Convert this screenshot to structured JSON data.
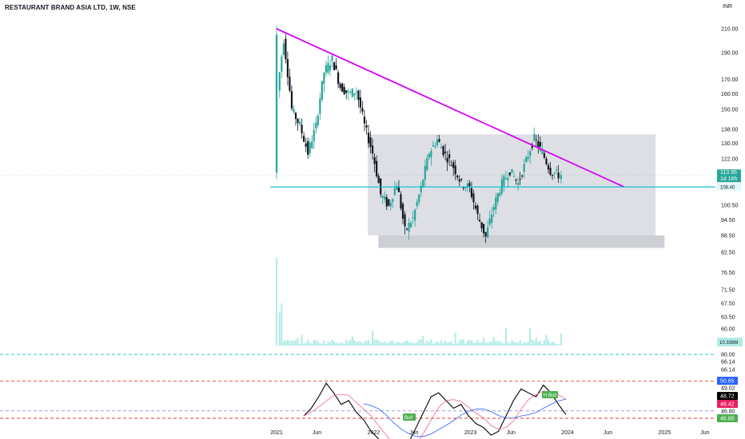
{
  "header": {
    "title": "RESTAURANT BRAND ASIA LTD, 1W, NSE",
    "currency": "INR"
  },
  "colors": {
    "up": "#26a69a",
    "down": "#131722",
    "trendline": "#d500f9",
    "support": "#00bcd4",
    "zone": "#d1d4dc",
    "volume": "#b2ebe6",
    "rsi": "#000000",
    "rsi_ma": "#f06292",
    "rsi_ma2": "#2962ff",
    "rsi_ma3": "#4caf50"
  },
  "chart_data": [
    {
      "type": "candlestick",
      "title": "RESTAURANT BRAND ASIA LTD, 1W, NSE",
      "y_scale": "log",
      "y_tick_labels": [
        "210.00",
        "190.00",
        "170.00",
        "160.00",
        "150.00",
        "138.00",
        "130.00",
        "122.00",
        "113.95",
        "108.40",
        "100.50",
        "94.50",
        "88.50",
        "82.50",
        "76.50",
        "71.50",
        "67.50",
        "63.50",
        "60.00"
      ],
      "x_tick_labels": [
        "2021",
        "Jun",
        "2022",
        "Jun",
        "2023",
        "Jun",
        "2024",
        "Jun",
        "2025",
        "Jun"
      ],
      "close_path": [
        [
          "2021-01",
          150
        ],
        [
          "2021-02",
          200
        ],
        [
          "2021-03",
          150
        ],
        [
          "2021-04",
          140
        ],
        [
          "2021-05",
          125
        ],
        [
          "2021-06",
          140
        ],
        [
          "2021-07",
          175
        ],
        [
          "2021-08",
          185
        ],
        [
          "2021-09",
          165
        ],
        [
          "2021-10",
          160
        ],
        [
          "2021-11",
          162
        ],
        [
          "2021-12",
          140
        ],
        [
          "2022-01",
          125
        ],
        [
          "2022-02",
          105
        ],
        [
          "2022-03",
          100
        ],
        [
          "2022-04",
          110
        ],
        [
          "2022-05",
          90
        ],
        [
          "2022-06",
          95
        ],
        [
          "2022-07",
          108
        ],
        [
          "2022-08",
          125
        ],
        [
          "2022-09",
          132
        ],
        [
          "2022-10",
          124
        ],
        [
          "2022-11",
          118
        ],
        [
          "2022-12",
          110
        ],
        [
          "2023-01",
          108
        ],
        [
          "2023-02",
          96
        ],
        [
          "2023-03",
          88
        ],
        [
          "2023-04",
          100
        ],
        [
          "2023-05",
          110
        ],
        [
          "2023-06",
          116
        ],
        [
          "2023-07",
          110
        ],
        [
          "2023-08",
          121
        ],
        [
          "2023-09",
          133
        ],
        [
          "2023-10",
          125
        ],
        [
          "2023-11",
          116
        ],
        [
          "2023-12",
          113.95
        ]
      ],
      "last_price": 113.95,
      "last_price_countdown": "1d 16h",
      "support_level": 108.4,
      "trendline": {
        "from": [
          "2021-01",
          210
        ],
        "to": [
          "2024-08",
          108.4
        ]
      },
      "consolidation_zone": {
        "top": 135,
        "bottom": 88.5,
        "from": "2021-12",
        "to": "2024-12"
      },
      "demand_zone": {
        "top": 88.5,
        "bottom": 84,
        "from": "2022-02",
        "to": "2025-01"
      },
      "volume_last": "10.339M"
    },
    {
      "type": "line",
      "name": "RSI",
      "y_tick_labels": [
        "80.00",
        "66.14",
        "66.14",
        "50.65",
        "49.02",
        "48.72",
        "48.42",
        "46.80",
        "46.80"
      ],
      "levels": [
        80,
        66.14,
        50.65,
        46.8
      ],
      "values": [
        48,
        52,
        58,
        65,
        60,
        54,
        56,
        50,
        46,
        40,
        36,
        30,
        28,
        30,
        34,
        42,
        50,
        58,
        60,
        56,
        52,
        54,
        48,
        44,
        42,
        38,
        40,
        48,
        56,
        62,
        60,
        58,
        64,
        60,
        54,
        48.72
      ],
      "last_value": "48.72",
      "annotations": [
        "Bull",
        "H Bull"
      ]
    }
  ]
}
